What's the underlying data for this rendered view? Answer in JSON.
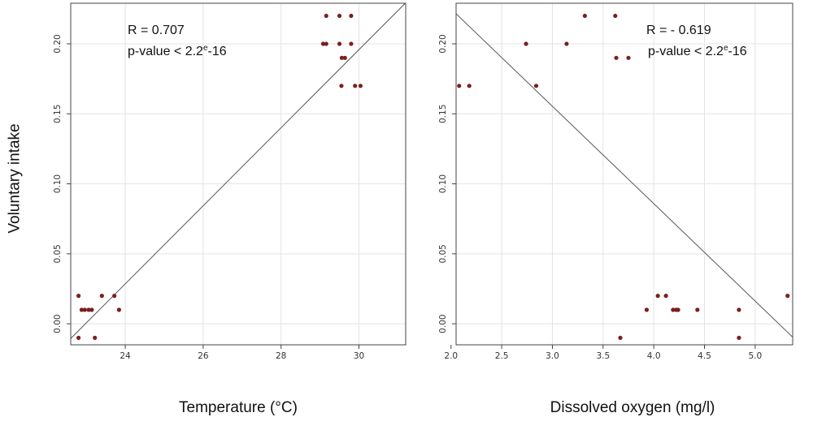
{
  "shared_ylabel": "Voluntary intake",
  "chart_data": [
    {
      "type": "scatter",
      "xlabel": "Temperature (°C)",
      "ylabel": "Voluntary intake",
      "xlim": [
        22.6,
        31.2
      ],
      "ylim": [
        -0.015,
        0.229
      ],
      "xticks": [
        24,
        26,
        28,
        30
      ],
      "xtick_labels": [
        "24",
        "26",
        "28",
        "30"
      ],
      "yticks": [
        0.0,
        0.05,
        0.1,
        0.15,
        0.2
      ],
      "ytick_labels": [
        "0.00",
        "0.05",
        "0.10",
        "0.15",
        "0.20"
      ],
      "grid": true,
      "annotations": {
        "r_text": "R = 0.707",
        "p_text_prefix": "p-value < 2.2",
        "p_text_sup": "e",
        "p_text_suffix": "-16"
      },
      "x": [
        22.8,
        22.8,
        22.88,
        22.96,
        23.06,
        23.14,
        23.22,
        23.4,
        23.72,
        23.84,
        29.08,
        29.16,
        29.16,
        29.5,
        29.5,
        29.55,
        29.56,
        29.64,
        29.8,
        29.8,
        29.9,
        30.04
      ],
      "y": [
        -0.01,
        0.02,
        0.01,
        0.01,
        0.01,
        0.01,
        -0.01,
        0.02,
        0.02,
        0.01,
        0.2,
        0.22,
        0.2,
        0.22,
        0.2,
        0.17,
        0.19,
        0.19,
        0.22,
        0.2,
        0.17,
        0.17
      ],
      "fit_line": {
        "x": [
          22.6,
          31.2
        ],
        "y": [
          -0.0105,
          0.2293
        ]
      },
      "point_color": "#7a1f1f",
      "line_color": "#555555"
    },
    {
      "type": "scatter",
      "xlabel": "Dissolved oxygen (mg/l)",
      "ylabel": "",
      "xlim": [
        2.05,
        5.37
      ],
      "ylim": [
        -0.015,
        0.229
      ],
      "xticks": [
        2.0,
        2.5,
        3.0,
        3.5,
        4.0,
        4.5,
        5.0
      ],
      "xtick_labels": [
        "2.0",
        "2.5",
        "3.0",
        "3.5",
        "4.0",
        "4.5",
        "5.0"
      ],
      "yticks": [
        0.0,
        0.05,
        0.1,
        0.15,
        0.2
      ],
      "ytick_labels": [
        "0.00",
        "0.05",
        "0.10",
        "0.15",
        "0.20"
      ],
      "grid": true,
      "annotations": {
        "r_text": "R = - 0.619",
        "p_text_prefix": "p-value < 2.2",
        "p_text_sup": "e",
        "p_text_suffix": "-16"
      },
      "x": [
        2.08,
        2.18,
        2.74,
        2.84,
        3.14,
        3.32,
        3.62,
        3.63,
        3.67,
        3.75,
        3.93,
        4.04,
        4.12,
        4.19,
        4.22,
        4.24,
        4.43,
        4.84,
        4.84,
        5.32
      ],
      "y": [
        0.17,
        0.17,
        0.2,
        0.17,
        0.2,
        0.22,
        0.22,
        0.19,
        -0.01,
        0.19,
        0.01,
        0.02,
        0.02,
        0.01,
        0.01,
        0.01,
        0.01,
        0.01,
        -0.01,
        0.02
      ],
      "fit_line": {
        "x": [
          2.05,
          5.37
        ],
        "y": [
          0.2215,
          -0.0095
        ]
      },
      "point_color": "#7a1f1f",
      "line_color": "#555555"
    }
  ]
}
